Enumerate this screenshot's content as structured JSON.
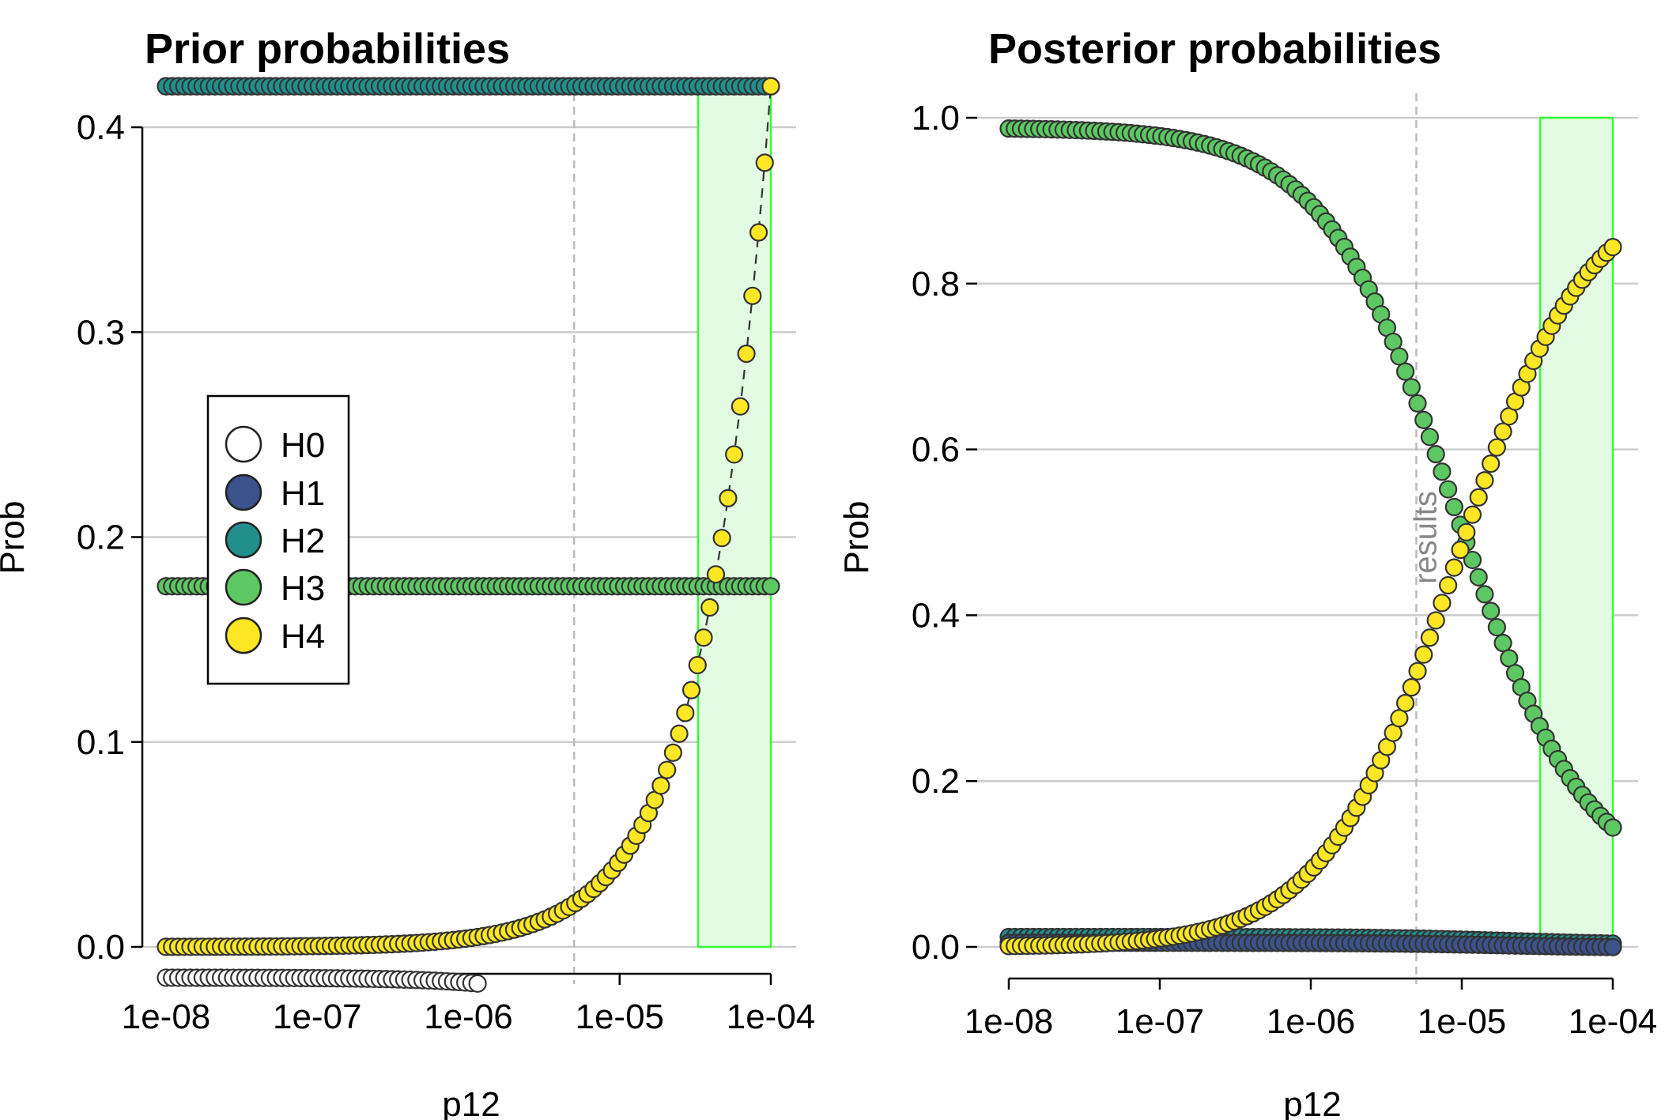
{
  "colors": {
    "H0": "#ffffff",
    "H1": "#3b528b",
    "H2": "#21908c",
    "H3": "#5dc863",
    "H4": "#fde725",
    "highlight_fill": "#e3fbe3",
    "highlight_stroke": "#33ff33",
    "grid": "#cccccc",
    "marker_edge": "#333333"
  },
  "chart_data": [
    {
      "type": "scatter",
      "title": "Prior probabilities",
      "xlabel": "p12",
      "ylabel": "Prob",
      "x_scale": "log",
      "xlim": [
        1e-08,
        0.0001
      ],
      "ylim": [
        -0.015,
        0.42
      ],
      "x_ticks": [
        "1e-08",
        "1e-07",
        "1e-06",
        "1e-05",
        "1e-04"
      ],
      "y_ticks": [
        "0.0",
        "0.1",
        "0.2",
        "0.3",
        "0.4"
      ],
      "y_tick_values": [
        0,
        0.1,
        0.2,
        0.3,
        0.4
      ],
      "grid": "horizontal",
      "vline_x": 5e-06,
      "highlight_x_range": [
        3.3e-05,
        0.0001
      ],
      "highlight_y_range": [
        0,
        0.42
      ],
      "legend": {
        "placement": "left",
        "entries": [
          "H0",
          "H1",
          "H2",
          "H3",
          "H4"
        ]
      },
      "series": [
        {
          "name": "H0",
          "model": "prior_h0",
          "values": {
            "p1": 1e-06,
            "p2": 1e-06,
            "snps": 1000
          }
        },
        {
          "name": "H1",
          "model": "const",
          "value": 0.42
        },
        {
          "name": "H2",
          "model": "const",
          "value": 0.42
        },
        {
          "name": "H3",
          "model": "const",
          "value": 0.176
        },
        {
          "name": "H4",
          "model": "linear",
          "slope": 4200
        }
      ]
    },
    {
      "type": "scatter",
      "title": "Posterior probabilities",
      "xlabel": "p12",
      "ylabel": "Prob",
      "x_scale": "log",
      "xlim": [
        1e-08,
        0.0001
      ],
      "ylim": [
        0,
        1.0
      ],
      "x_ticks": [
        "1e-08",
        "1e-07",
        "1e-06",
        "1e-05",
        "1e-04"
      ],
      "y_ticks": [
        "0.0",
        "0.2",
        "0.4",
        "0.6",
        "0.8",
        "1.0"
      ],
      "y_tick_values": [
        0,
        0.2,
        0.4,
        0.6,
        0.8,
        1.0
      ],
      "grid": "horizontal",
      "vline_x": 5e-06,
      "vline_label": "results",
      "highlight_x_range": [
        3.3e-05,
        0.0001
      ],
      "highlight_y_range": [
        0,
        1.0
      ],
      "series": [
        {
          "name": "H1",
          "model": "posterior",
          "values": {
            "max": 0.009
          }
        },
        {
          "name": "H2",
          "model": "posterior",
          "values": {
            "max": 0.012
          }
        },
        {
          "name": "H3",
          "model": "posterior",
          "values": {
            "max": 0.988
          }
        },
        {
          "name": "H4",
          "model": "posterior_h4",
          "values": {
            "mid": 9e-06,
            "a": 4.6e-05
          }
        }
      ]
    }
  ]
}
